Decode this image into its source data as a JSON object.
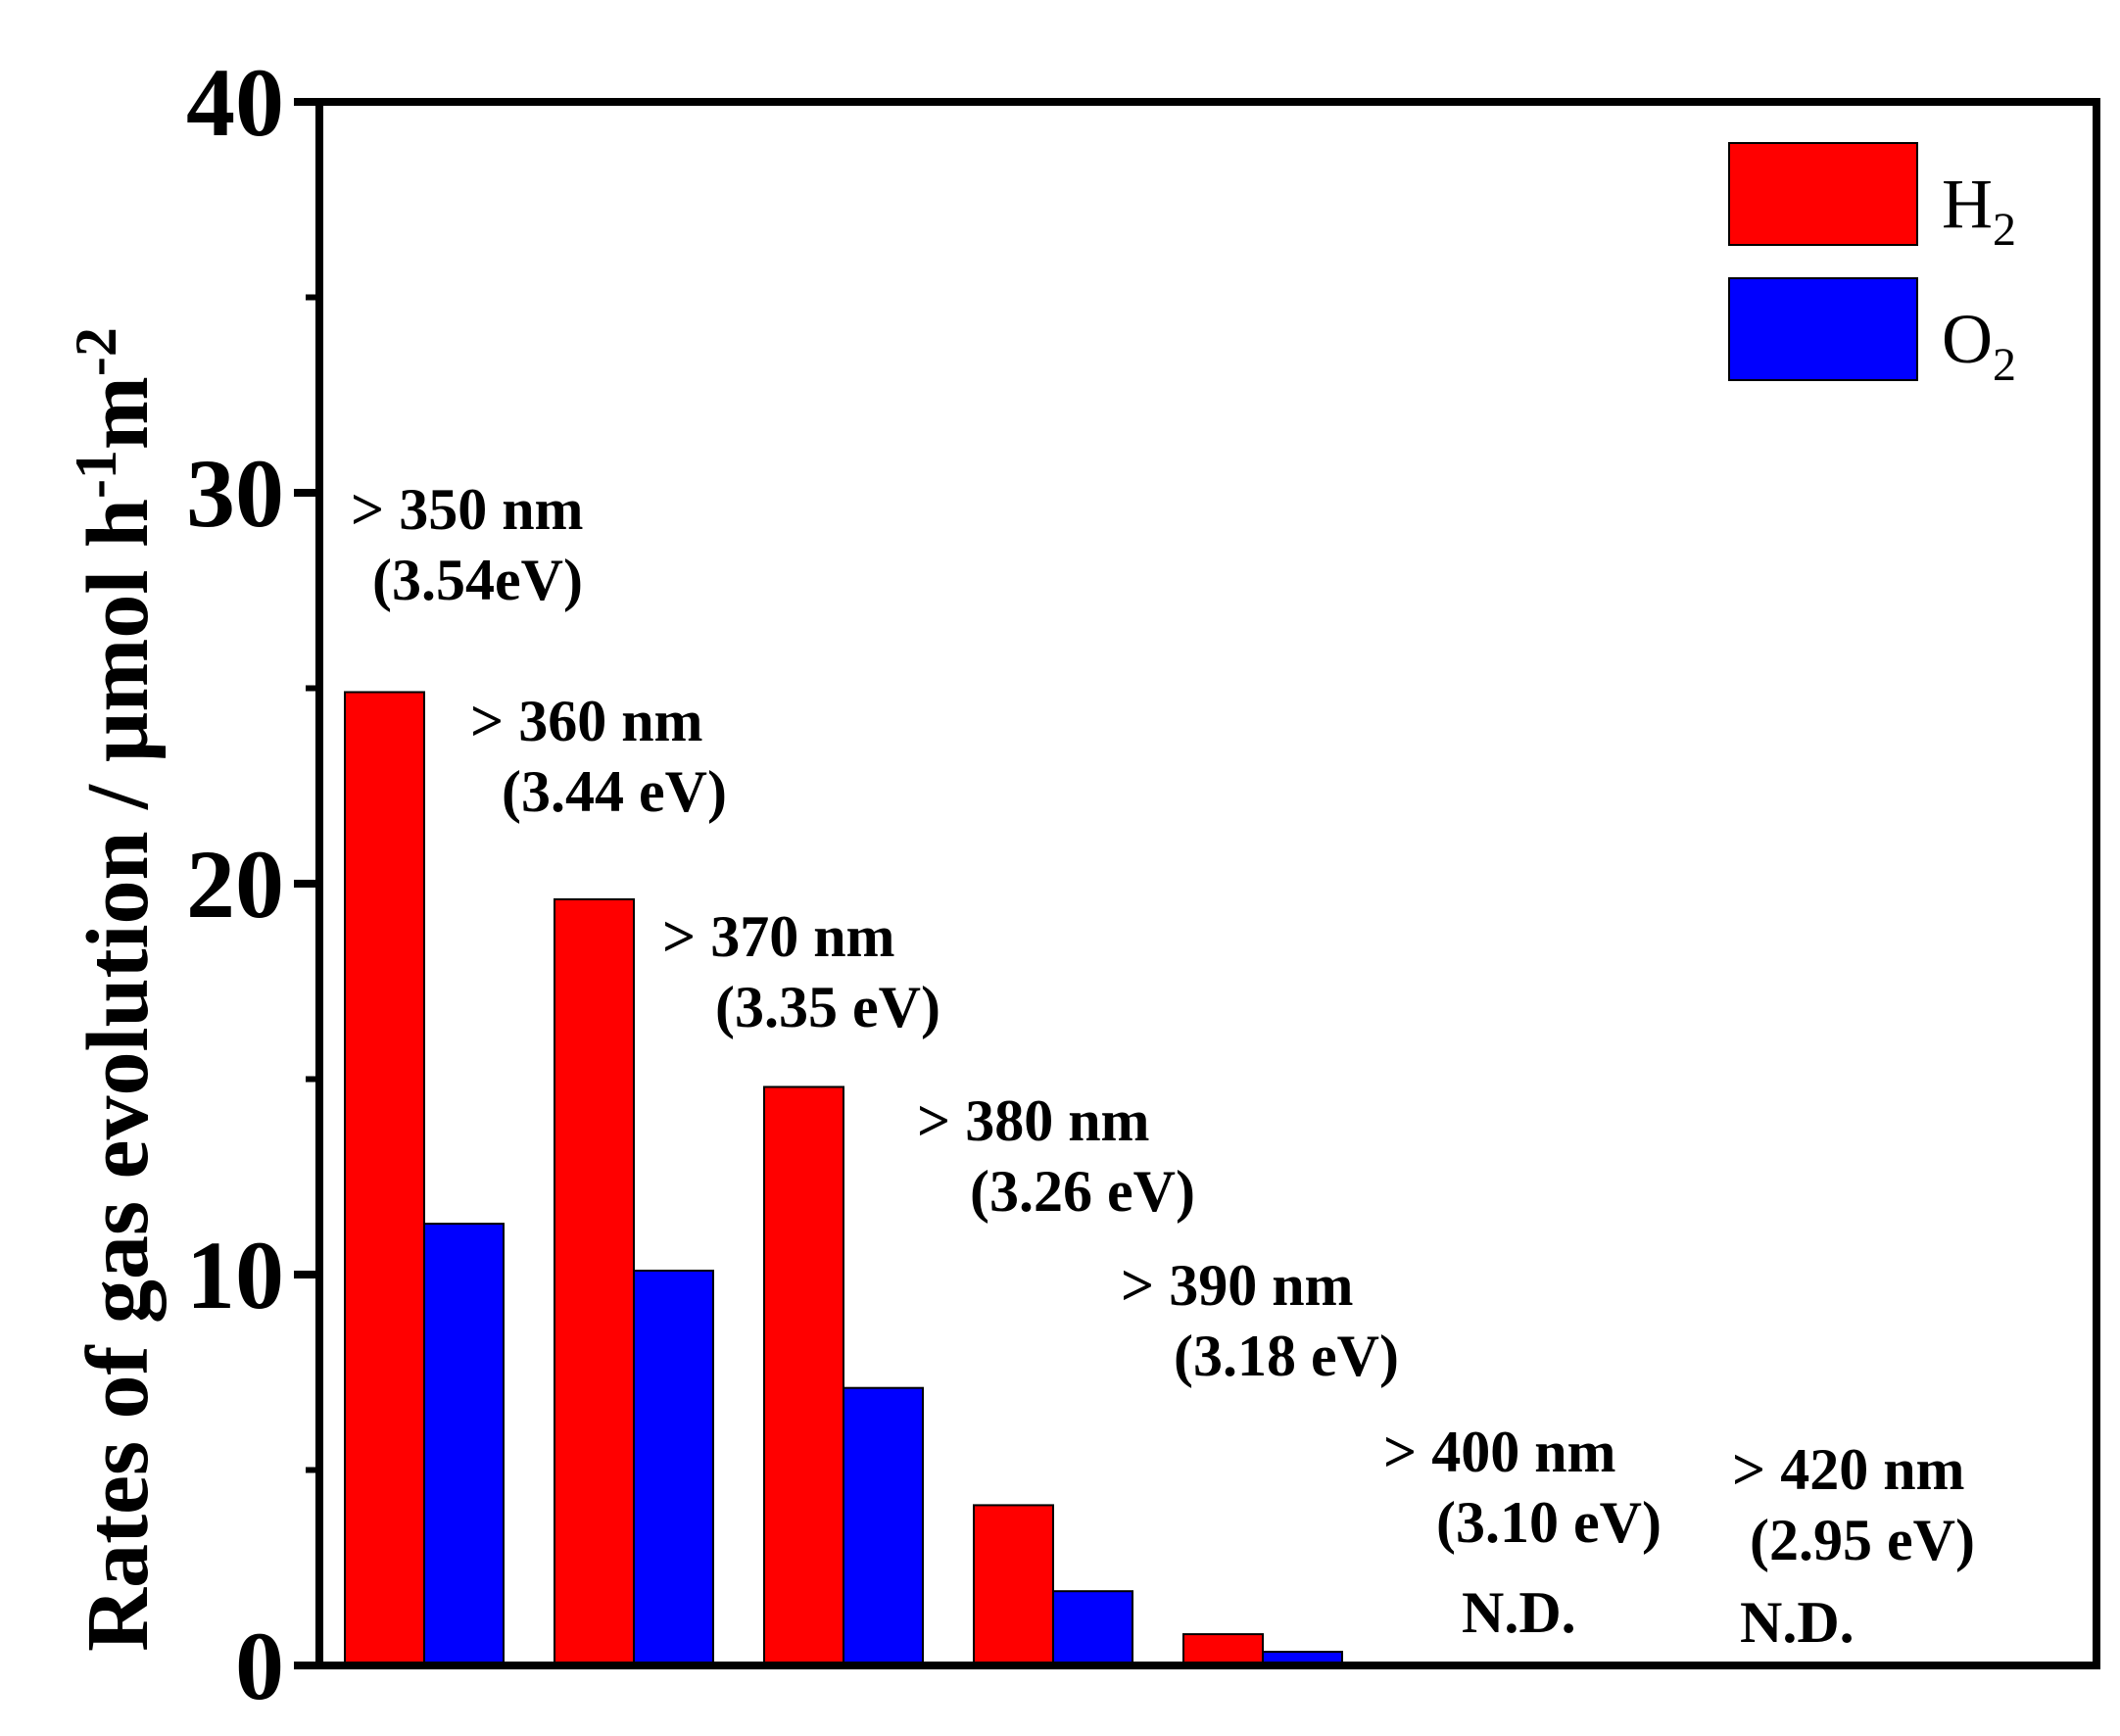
{
  "chart_data": {
    "type": "bar",
    "title": "",
    "xlabel": "",
    "ylabel": "Rates of gas evolution / µmol h",
    "ylabel_sup1": "-1",
    "ylabel_mid": "m",
    "ylabel_sup2": "-2",
    "ylim": [
      0,
      40
    ],
    "yticks": [
      "0",
      "10",
      "20",
      "30",
      "40"
    ],
    "categories": [
      ">350 nm",
      ">360 nm",
      ">370 nm",
      ">380 nm",
      ">390 nm",
      ">400 nm",
      ">420 nm"
    ],
    "annotations": [
      {
        "line1": "> 350 nm",
        "line2": "(3.54eV)",
        "nd": ""
      },
      {
        "line1": "> 360 nm",
        "line2": "(3.44 eV)",
        "nd": ""
      },
      {
        "line1": "> 370 nm",
        "line2": "(3.35 eV)",
        "nd": ""
      },
      {
        "line1": "> 380 nm",
        "line2": "(3.26 eV)",
        "nd": ""
      },
      {
        "line1": "> 390 nm",
        "line2": "(3.18 eV)",
        "nd": ""
      },
      {
        "line1": "> 400 nm",
        "line2": "(3.10 eV)",
        "nd": "N.D."
      },
      {
        "line1": "> 420 nm",
        "line2": "(2.95 eV)",
        "nd": "N.D."
      }
    ],
    "series": [
      {
        "name": "H",
        "sub": "2",
        "color": "#ff0000",
        "values": [
          24.9,
          19.6,
          14.8,
          4.1,
          0.8,
          0,
          0
        ]
      },
      {
        "name": "O",
        "sub": "2",
        "color": "#0000ff",
        "values": [
          11.3,
          10.1,
          7.1,
          1.9,
          0.35,
          0,
          0
        ]
      }
    ],
    "legend_position": "top-right",
    "grid": false
  }
}
